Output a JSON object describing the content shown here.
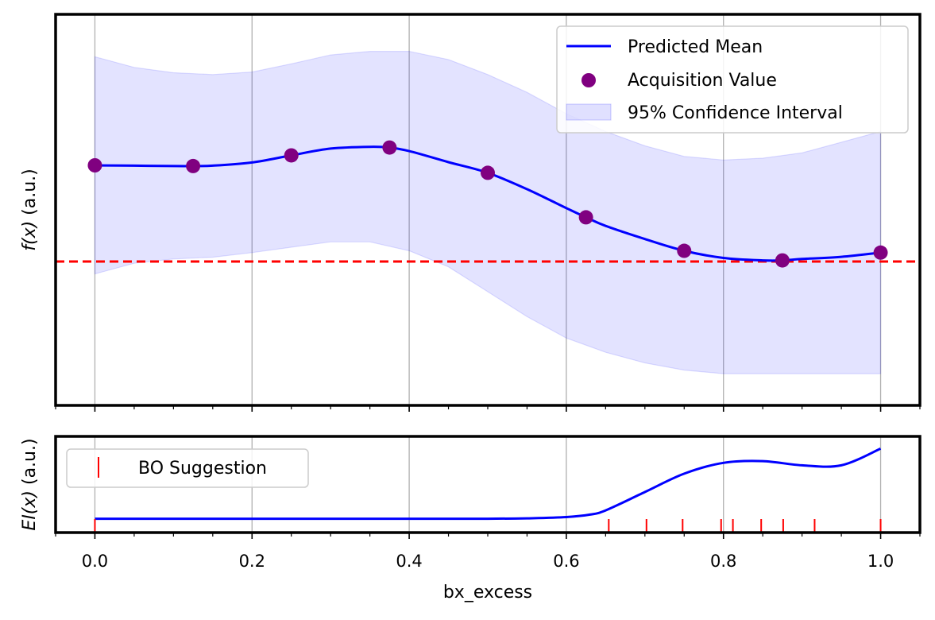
{
  "chart_data": [
    {
      "panel": "top",
      "type": "line",
      "ylabel_italic": "f(x)",
      "ylabel_units": " (a.u.)",
      "xlim": [
        -0.05,
        1.05
      ],
      "ylim": [
        0,
        1
      ],
      "y_scale_note": "arbitrary units",
      "grid": "x-major",
      "legend_position": "upper right",
      "series": [
        {
          "name": "Predicted Mean",
          "kind": "line",
          "color": "#0000ff",
          "x": [
            0,
            0.05,
            0.1,
            0.125,
            0.15,
            0.2,
            0.25,
            0.3,
            0.35,
            0.375,
            0.4,
            0.45,
            0.5,
            0.55,
            0.6,
            0.625,
            0.65,
            0.7,
            0.75,
            0.8,
            0.85,
            0.875,
            0.9,
            0.95,
            1.0
          ],
          "y": [
            0.625,
            0.624,
            0.623,
            0.623,
            0.624,
            0.633,
            0.653,
            0.672,
            0.677,
            0.675,
            0.665,
            0.634,
            0.604,
            0.558,
            0.505,
            0.479,
            0.455,
            0.418,
            0.385,
            0.365,
            0.358,
            0.358,
            0.362,
            0.368,
            0.38
          ]
        },
        {
          "name": "Acquisition Value",
          "kind": "scatter",
          "color": "#800080",
          "x": [
            0,
            0.125,
            0.25,
            0.375,
            0.5,
            0.625,
            0.75,
            0.875,
            1.0
          ],
          "y": [
            0.625,
            0.623,
            0.653,
            0.675,
            0.604,
            0.479,
            0.385,
            0.358,
            0.38
          ]
        },
        {
          "name": "95% Confidence Interval",
          "kind": "band",
          "color": "#0000ff",
          "alpha": 0.11,
          "x": [
            0,
            0.05,
            0.1,
            0.15,
            0.2,
            0.25,
            0.3,
            0.35,
            0.4,
            0.45,
            0.5,
            0.55,
            0.6,
            0.65,
            0.7,
            0.75,
            0.8,
            0.85,
            0.9,
            0.95,
            1.0
          ],
          "upper": [
            0.93,
            0.9,
            0.885,
            0.88,
            0.887,
            0.91,
            0.935,
            0.945,
            0.945,
            0.922,
            0.88,
            0.83,
            0.77,
            0.72,
            0.68,
            0.65,
            0.64,
            0.645,
            0.66,
            0.69,
            0.72
          ],
          "lower": [
            0.32,
            0.35,
            0.362,
            0.367,
            0.38,
            0.395,
            0.41,
            0.41,
            0.385,
            0.34,
            0.27,
            0.2,
            0.14,
            0.1,
            0.07,
            0.05,
            0.04,
            0.04,
            0.04,
            0.04,
            0.04
          ]
        }
      ],
      "reference_lines": [
        {
          "orientation": "horizontal",
          "y": 0.355,
          "color": "#ff0000",
          "style": "dashed"
        }
      ]
    },
    {
      "panel": "bottom",
      "type": "line",
      "xlabel": "bx_excess",
      "ylabel_italic": "EI(x)",
      "ylabel_units": " (a.u.)",
      "xlim": [
        -0.05,
        1.05
      ],
      "ylim": [
        0,
        1
      ],
      "y_scale_note": "arbitrary units",
      "x_ticks": [
        "0.0",
        "0.2",
        "0.4",
        "0.6",
        "0.8",
        "1.0"
      ],
      "x_tick_values": [
        0,
        0.2,
        0.4,
        0.6,
        0.8,
        1.0
      ],
      "grid": "x-major",
      "legend_position": "upper left",
      "series": [
        {
          "name": "",
          "kind": "line",
          "color": "#0000ff",
          "x": [
            0,
            0.1,
            0.2,
            0.3,
            0.4,
            0.5,
            0.55,
            0.6,
            0.63,
            0.65,
            0.7,
            0.75,
            0.8,
            0.85,
            0.9,
            0.95,
            1.0
          ],
          "y": [
            0.08,
            0.08,
            0.08,
            0.08,
            0.08,
            0.08,
            0.085,
            0.1,
            0.13,
            0.18,
            0.4,
            0.62,
            0.75,
            0.77,
            0.72,
            0.72,
            0.92
          ]
        },
        {
          "name": "BO Suggestion",
          "kind": "rug",
          "color": "#ff0000",
          "x": [
            0,
            0.654,
            0.702,
            0.748,
            0.797,
            0.812,
            0.848,
            0.876,
            0.916,
            1.0
          ]
        }
      ]
    }
  ]
}
